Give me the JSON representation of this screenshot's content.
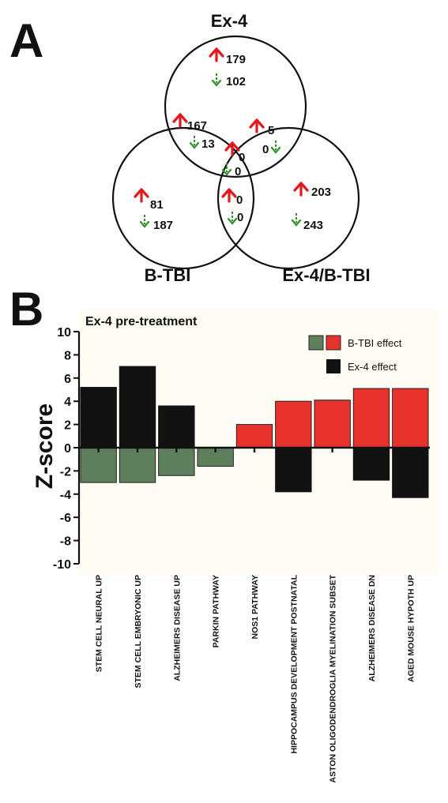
{
  "panel_a": {
    "letter": "A",
    "sets": [
      {
        "key": "ex4",
        "label": "Ex-4"
      },
      {
        "key": "btbi",
        "label": "B-TBI"
      },
      {
        "key": "ex4btbi",
        "label": "Ex-4/B-TBI"
      }
    ],
    "regions": [
      {
        "id": "ex4-only",
        "up": "179",
        "down": "102"
      },
      {
        "id": "ex4-btbi-overlap",
        "up": "167",
        "down": "13"
      },
      {
        "id": "ex4-ex4btbi-overlap",
        "up": "5",
        "down": "0"
      },
      {
        "id": "center",
        "up": "0",
        "down": "0"
      },
      {
        "id": "btbi-only",
        "up": "81",
        "down": "187"
      },
      {
        "id": "btbi-ex4btbi-overlap",
        "up": "0",
        "down": "0"
      },
      {
        "id": "ex4btbi-only",
        "up": "203",
        "down": "243"
      }
    ],
    "colors": {
      "up": "#e3171c",
      "down": "#2f8f2a"
    }
  },
  "panel_b": {
    "letter": "B",
    "colors": {
      "btbi": "#e8332d",
      "btbi_negative": "#5e7f5c",
      "ex4": "#121212",
      "background": "#fffcf4"
    }
  },
  "chart_data": {
    "type": "bar",
    "title": "Ex-4 pre-treatment",
    "ylabel": "Z-score",
    "xlabel": "",
    "ylim": [
      -10,
      10
    ],
    "yticks": [
      10,
      8,
      6,
      4,
      2,
      0,
      -2,
      -4,
      -6,
      -8,
      -10
    ],
    "grid": false,
    "legend": {
      "placement": "top-right",
      "entries": [
        "B-TBI effect",
        "Ex-4 effect"
      ]
    },
    "categories": [
      "STEM CELL NEURAL UP",
      "STEM CELL EMBRYONIC UP",
      "ALZHEIMERS DISEASE UP",
      "PARKIN PATHWAY",
      "NOS1 PATHWAY",
      "HIPPOCAMPUS DEVELOPMENT POSTNATAL",
      "ASTON OLIGODENDROGLIA MYELINATION SUBSET",
      "ALZHEIMERS DISEASE DN",
      "AGED MOUSE HYPOTH UP"
    ],
    "series": [
      {
        "name": "B-TBI effect",
        "values": [
          -3.0,
          -3.0,
          -2.4,
          -1.6,
          2.0,
          4.0,
          4.1,
          5.1,
          5.1
        ]
      },
      {
        "name": "Ex-4 effect",
        "values": [
          5.2,
          7.0,
          3.6,
          0,
          0,
          -3.8,
          0,
          -2.8,
          -4.3
        ]
      }
    ]
  }
}
